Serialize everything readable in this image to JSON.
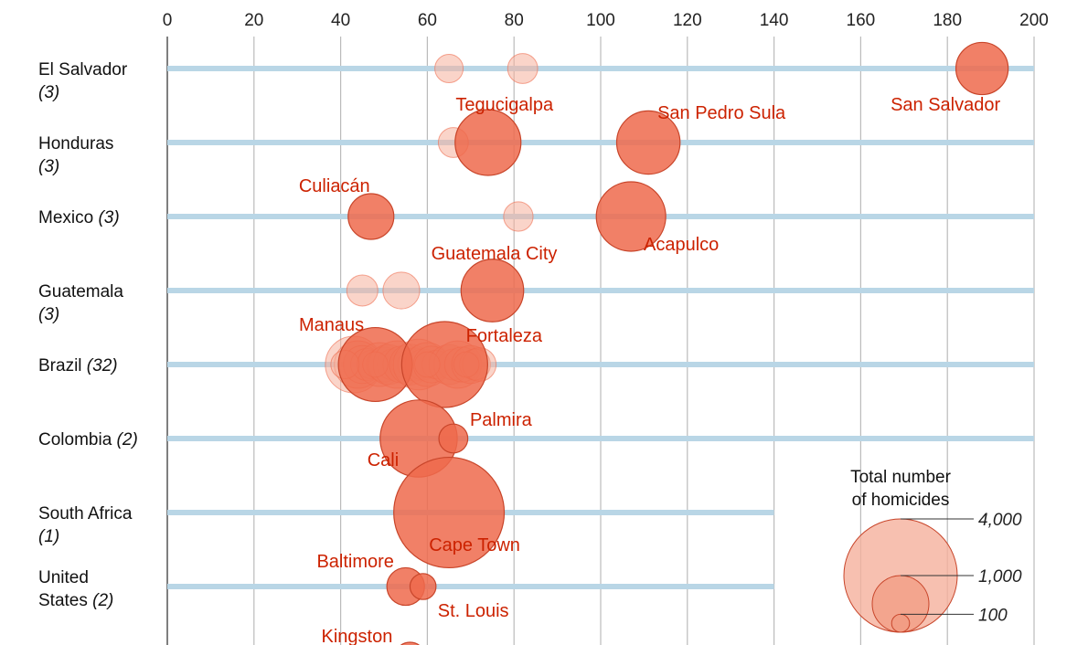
{
  "chart_data": {
    "type": "scatter",
    "x_axis": {
      "range": [
        0,
        200
      ],
      "ticks": [
        "0",
        "20",
        "40",
        "60",
        "80",
        "100",
        "120",
        "140",
        "160",
        "180",
        "200"
      ],
      "grid": true,
      "position": "top"
    },
    "colors": {
      "highlight": "#ee6a4c",
      "faded": "#f5b09c",
      "label": "#cc2200",
      "row_line": "#b9d6e6",
      "grid": "#bbbbbb"
    },
    "countries": [
      {
        "name": "El Salvador",
        "count": "(3)",
        "line_to": 200,
        "bubbles": [
          {
            "x": 65,
            "homicides": 250,
            "highlight": false
          },
          {
            "x": 82,
            "homicides": 280,
            "highlight": false
          },
          {
            "x": 188,
            "homicides": 850,
            "highlight": true,
            "label": "San Salvador"
          }
        ]
      },
      {
        "name": "Honduras",
        "count": "(3)",
        "line_to": 200,
        "bubbles": [
          {
            "x": 66,
            "homicides": 280,
            "highlight": false
          },
          {
            "x": 74,
            "homicides": 1350,
            "highlight": true,
            "label": "Tegucigalpa"
          },
          {
            "x": 111,
            "homicides": 1250,
            "highlight": true,
            "label": "San Pedro Sula"
          }
        ]
      },
      {
        "name": "Mexico",
        "count": "(3)",
        "line_to": 200,
        "bubbles": [
          {
            "x": 47,
            "homicides": 650,
            "highlight": true,
            "label": "Culiacán"
          },
          {
            "x": 81,
            "homicides": 270,
            "highlight": false
          },
          {
            "x": 107,
            "homicides": 1500,
            "highlight": true,
            "label": "Acapulco"
          }
        ]
      },
      {
        "name": "Guatemala",
        "count": "(3)",
        "line_to": 200,
        "bubbles": [
          {
            "x": 45,
            "homicides": 300,
            "highlight": false
          },
          {
            "x": 54,
            "homicides": 420,
            "highlight": false
          },
          {
            "x": 75,
            "homicides": 1220,
            "highlight": true,
            "label": "Guatemala City"
          }
        ]
      },
      {
        "name": "Brazil",
        "count": "(32)",
        "line_to": 200,
        "bubbles": [
          {
            "x": 43,
            "homicides": 1000,
            "highlight": false
          },
          {
            "x": 44,
            "homicides": 700,
            "highlight": false
          },
          {
            "x": 45,
            "homicides": 450,
            "highlight": false
          },
          {
            "x": 46,
            "homicides": 320,
            "highlight": false
          },
          {
            "x": 47,
            "homicides": 250,
            "highlight": false
          },
          {
            "x": 49,
            "homicides": 600,
            "highlight": false
          },
          {
            "x": 50,
            "homicides": 380,
            "highlight": false
          },
          {
            "x": 51,
            "homicides": 500,
            "highlight": false
          },
          {
            "x": 52,
            "homicides": 300,
            "highlight": false
          },
          {
            "x": 53,
            "homicides": 700,
            "highlight": false
          },
          {
            "x": 54,
            "homicides": 420,
            "highlight": false
          },
          {
            "x": 55,
            "homicides": 250,
            "highlight": false
          },
          {
            "x": 56,
            "homicides": 520,
            "highlight": false
          },
          {
            "x": 57,
            "homicides": 340,
            "highlight": false
          },
          {
            "x": 58,
            "homicides": 800,
            "highlight": false
          },
          {
            "x": 59,
            "homicides": 300,
            "highlight": false
          },
          {
            "x": 60,
            "homicides": 600,
            "highlight": false
          },
          {
            "x": 61,
            "homicides": 420,
            "highlight": false
          },
          {
            "x": 62,
            "homicides": 250,
            "highlight": false
          },
          {
            "x": 65,
            "homicides": 500,
            "highlight": false
          },
          {
            "x": 66,
            "homicides": 300,
            "highlight": false
          },
          {
            "x": 67,
            "homicides": 700,
            "highlight": false
          },
          {
            "x": 68,
            "homicides": 380,
            "highlight": false
          },
          {
            "x": 70,
            "homicides": 450,
            "highlight": false
          },
          {
            "x": 71,
            "homicides": 300,
            "highlight": false
          },
          {
            "x": 72,
            "homicides": 350,
            "highlight": false
          },
          {
            "x": 41,
            "homicides": 250,
            "highlight": false
          },
          {
            "x": 48,
            "homicides": 200,
            "highlight": false
          },
          {
            "x": 60,
            "homicides": 200,
            "highlight": false
          },
          {
            "x": 69,
            "homicides": 200,
            "highlight": false
          },
          {
            "x": 48,
            "homicides": 1700,
            "highlight": true,
            "label": "Manaus"
          },
          {
            "x": 64,
            "homicides": 2300,
            "highlight": true,
            "label": "Fortaleza"
          }
        ]
      },
      {
        "name": "Colombia",
        "count": "(2)",
        "line_to": 200,
        "bubbles": [
          {
            "x": 58,
            "homicides": 1850,
            "highlight": true,
            "label": "Cali"
          },
          {
            "x": 66,
            "homicides": 260,
            "highlight": true,
            "label": "Palmira"
          }
        ]
      },
      {
        "name": "South Africa",
        "count": "(1)",
        "line_to": 140,
        "bubbles": [
          {
            "x": 65,
            "homicides": 3800,
            "highlight": true,
            "label": "Cape Town"
          }
        ]
      },
      {
        "name": "United States",
        "count": "(2)",
        "line_to": 140,
        "bubbles": [
          {
            "x": 55,
            "homicides": 440,
            "highlight": true,
            "label": "Baltimore"
          },
          {
            "x": 59,
            "homicides": 210,
            "highlight": true,
            "label": "St. Louis"
          }
        ]
      },
      {
        "name": "",
        "count": "",
        "line_to": 140,
        "bubbles": [
          {
            "x": 56,
            "homicides": 300,
            "highlight": true,
            "label": "Kingston"
          }
        ]
      }
    ],
    "legend": {
      "title_line1": "Total number",
      "title_line2": "of homicides",
      "entries": [
        {
          "value": 4000,
          "label": "4,000"
        },
        {
          "value": 1000,
          "label": "1,000"
        },
        {
          "value": 100,
          "label": "100"
        }
      ]
    }
  }
}
